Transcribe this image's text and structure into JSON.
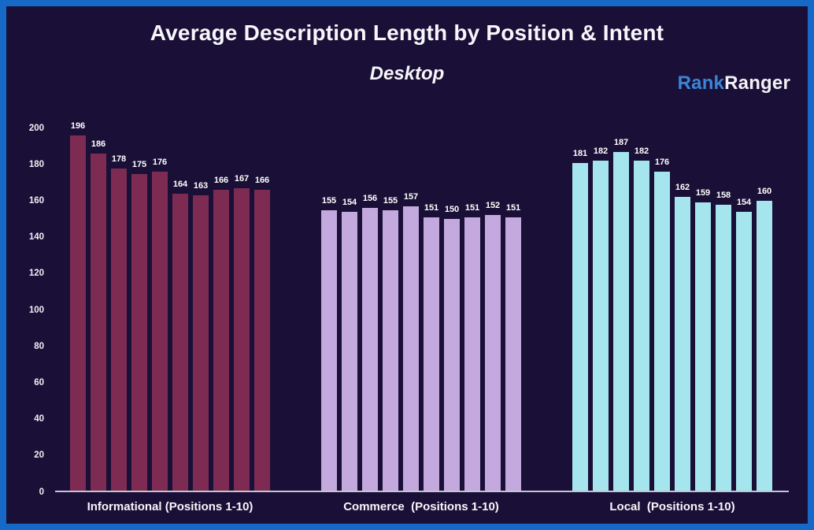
{
  "header": {
    "title": "Average Description Length by Position & Intent",
    "subtitle": "Desktop"
  },
  "logo": {
    "part1": "Rank",
    "part2": "Ranger",
    "part1_color": "#3a85d8",
    "part2_color": "#f2f1f6"
  },
  "colors": {
    "frame_border": "#1769c8",
    "background": "#1a1037",
    "axis_line": "#c6c4d2",
    "text": "#f7f6fa"
  },
  "chart_data": {
    "type": "bar",
    "title": "Average Description Length by Position & Intent",
    "subtitle": "Desktop",
    "xlabel": "",
    "ylabel": "",
    "ylim": [
      0,
      200
    ],
    "y_ticks": [
      0,
      20,
      40,
      60,
      80,
      100,
      120,
      140,
      160,
      180,
      200
    ],
    "grid": false,
    "legend": "none",
    "bar_value_labels": true,
    "groups": [
      {
        "label": "Informational (Positions 1-10)",
        "color": "#7e2b54",
        "positions": [
          1,
          2,
          3,
          4,
          5,
          6,
          7,
          8,
          9,
          10
        ],
        "values": [
          196,
          186,
          178,
          175,
          176,
          164,
          163,
          166,
          167,
          166
        ]
      },
      {
        "label": "Commerce  (Positions 1-10)",
        "color": "#c3a9de",
        "positions": [
          1,
          2,
          3,
          4,
          5,
          6,
          7,
          8,
          9,
          10
        ],
        "values": [
          155,
          154,
          156,
          155,
          157,
          151,
          150,
          151,
          152,
          151
        ]
      },
      {
        "label": "Local  (Positions 1-10)",
        "color": "#a5e5ed",
        "positions": [
          1,
          2,
          3,
          4,
          5,
          6,
          7,
          8,
          9,
          10
        ],
        "values": [
          181,
          182,
          187,
          182,
          176,
          162,
          159,
          158,
          154,
          160
        ]
      }
    ]
  }
}
